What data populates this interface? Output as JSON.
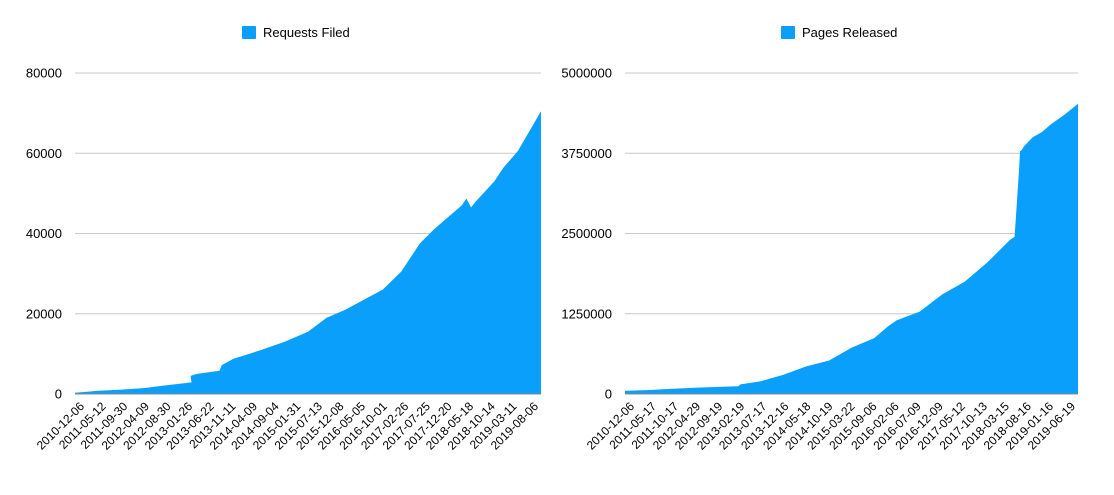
{
  "chart_data": [
    {
      "type": "area",
      "legend": "Requests Filed",
      "color": "#0a9ffb",
      "ylim": [
        0,
        80000
      ],
      "yticks": [
        "0",
        "20000",
        "40000",
        "60000",
        "80000"
      ],
      "xticks": [
        "2010-12-06",
        "2011-05-12",
        "2011-09-30",
        "2012-04-09",
        "2012-08-30",
        "2013-01-26",
        "2013-06-22",
        "2013-11-11",
        "2014-04-09",
        "2014-09-04",
        "2015-01-31",
        "2015-07-13",
        "2015-12-08",
        "2016-05-05",
        "2016-10-01",
        "2017-02-26",
        "2017-07-25",
        "2017-12-20",
        "2018-05-18",
        "2018-10-14",
        "2019-03-11",
        "2019-08-06"
      ],
      "x": [
        0,
        0.02,
        0.05,
        0.1,
        0.15,
        0.19,
        0.25,
        0.248,
        0.262,
        0.31,
        0.315,
        0.34,
        0.36,
        0.4,
        0.45,
        0.5,
        0.54,
        0.58,
        0.62,
        0.66,
        0.7,
        0.72,
        0.74,
        0.77,
        0.8,
        0.83,
        0.84,
        0.85,
        0.86,
        0.88,
        0.9,
        0.92,
        0.95,
        0.98,
        1.0
      ],
      "values": [
        300,
        500,
        800,
        1100,
        1500,
        2100,
        2900,
        4500,
        5000,
        5800,
        7200,
        8800,
        9500,
        11000,
        13000,
        15500,
        19000,
        21000,
        23500,
        26000,
        30500,
        34000,
        37500,
        41000,
        44000,
        47000,
        48700,
        46500,
        48000,
        50500,
        53000,
        56500,
        60500,
        66500,
        70500
      ]
    },
    {
      "type": "area",
      "legend": "Pages Released",
      "color": "#0a9ffb",
      "ylim": [
        0,
        5000000
      ],
      "yticks": [
        "0",
        "1250000",
        "2500000",
        "3750000",
        "5000000"
      ],
      "xticks": [
        "2010-12-06",
        "2011-05-17",
        "2011-10-17",
        "2012-04-29",
        "2012-09-19",
        "2013-02-19",
        "2013-07-17",
        "2013-12-16",
        "2014-05-18",
        "2014-10-19",
        "2015-03-22",
        "2015-09-06",
        "2016-02-06",
        "2016-07-09",
        "2016-12-09",
        "2017-05-12",
        "2017-10-13",
        "2018-03-15",
        "2018-08-16",
        "2019-01-16",
        "2019-06-19"
      ],
      "x": [
        0,
        0.05,
        0.1,
        0.16,
        0.25,
        0.255,
        0.3,
        0.35,
        0.4,
        0.45,
        0.5,
        0.55,
        0.58,
        0.6,
        0.65,
        0.7,
        0.75,
        0.8,
        0.85,
        0.86,
        0.87,
        0.872,
        0.876,
        0.88,
        0.9,
        0.92,
        0.94,
        0.97,
        1.0
      ],
      "values": [
        50000,
        60000,
        80000,
        100000,
        120000,
        150000,
        200000,
        300000,
        430000,
        520000,
        720000,
        870000,
        1050000,
        1150000,
        1280000,
        1550000,
        1750000,
        2050000,
        2400000,
        2450000,
        3500000,
        3780000,
        3800000,
        3850000,
        4000000,
        4080000,
        4200000,
        4350000,
        4520000
      ]
    }
  ]
}
